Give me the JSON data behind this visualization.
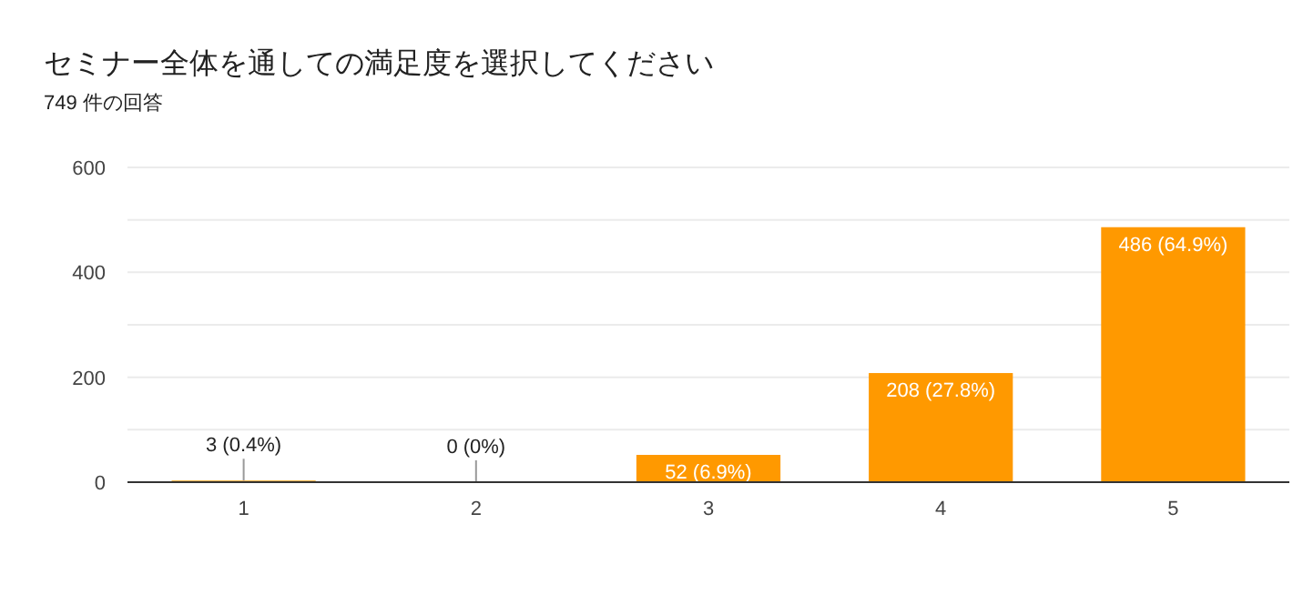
{
  "chart_data": {
    "type": "bar",
    "title": "セミナー全体を通しての満足度を選択してください",
    "subtitle": "749 件の回答",
    "categories": [
      "1",
      "2",
      "3",
      "4",
      "5"
    ],
    "values": [
      3,
      0,
      52,
      208,
      486
    ],
    "value_labels": [
      "3 (0.4%)",
      "0 (0%)",
      "52 (6.9%)",
      "208 (27.8%)",
      "486 (64.9%)"
    ],
    "color": "#ff9900",
    "ylim": [
      0,
      600
    ],
    "yticks": [
      0,
      {
        "value": 100,
        "label": null
      },
      200,
      {
        "value": 300,
        "label": null
      },
      400,
      {
        "value": 500,
        "label": null
      },
      600
    ],
    "grid": "y"
  }
}
